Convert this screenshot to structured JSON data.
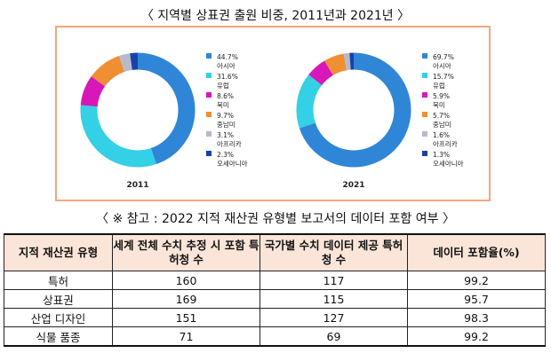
{
  "page_title": "〈 지역별 상표권 출원 비중, 2011년과 2021년 〉",
  "chart_data": [
    {
      "type": "pie",
      "title": "2011",
      "categories": [
        "아시아",
        "유럽",
        "북미",
        "중남미",
        "아프리카",
        "오세아니아"
      ],
      "values": [
        44.7,
        31.6,
        8.6,
        9.7,
        3.1,
        2.3
      ],
      "value_labels": [
        "44.7%",
        "31.6%",
        "8.6%",
        "9.7%",
        "3.1%",
        "2.3%"
      ],
      "colors": [
        "#2f86d6",
        "#33d0e6",
        "#d817b8",
        "#ef8f33",
        "#b9b9cc",
        "#1542a8"
      ]
    },
    {
      "type": "pie",
      "title": "2021",
      "categories": [
        "아시아",
        "유럽",
        "북미",
        "중남미",
        "아프리카",
        "오세아니아"
      ],
      "values": [
        69.7,
        15.7,
        5.9,
        5.7,
        1.6,
        1.3
      ],
      "value_labels": [
        "69.7%",
        "15.7%",
        "5.9%",
        "5.7%",
        "1.6%",
        "1.3%"
      ],
      "colors": [
        "#2f86d6",
        "#33d0e6",
        "#d817b8",
        "#ef8f33",
        "#b9b9cc",
        "#1542a8"
      ]
    }
  ],
  "table_title": "〈 ※ 참고 : 2022 지적 재산권 유형별 보고서의 데이터 포함 여부 〉",
  "table": {
    "headers": [
      "지적 재산권 유형",
      "세계 전체 수치 추정 시 포함 특허청 수",
      "국가별 수치 데이터 제공 특허청 수",
      "데이터 포함율(%)"
    ],
    "rows": [
      [
        "특허",
        "160",
        "117",
        "99.2"
      ],
      [
        "상표권",
        "169",
        "115",
        "95.7"
      ],
      [
        "산업 디자인",
        "151",
        "127",
        "98.3"
      ],
      [
        "식물 품종",
        "71",
        "69",
        "99.2"
      ]
    ]
  }
}
